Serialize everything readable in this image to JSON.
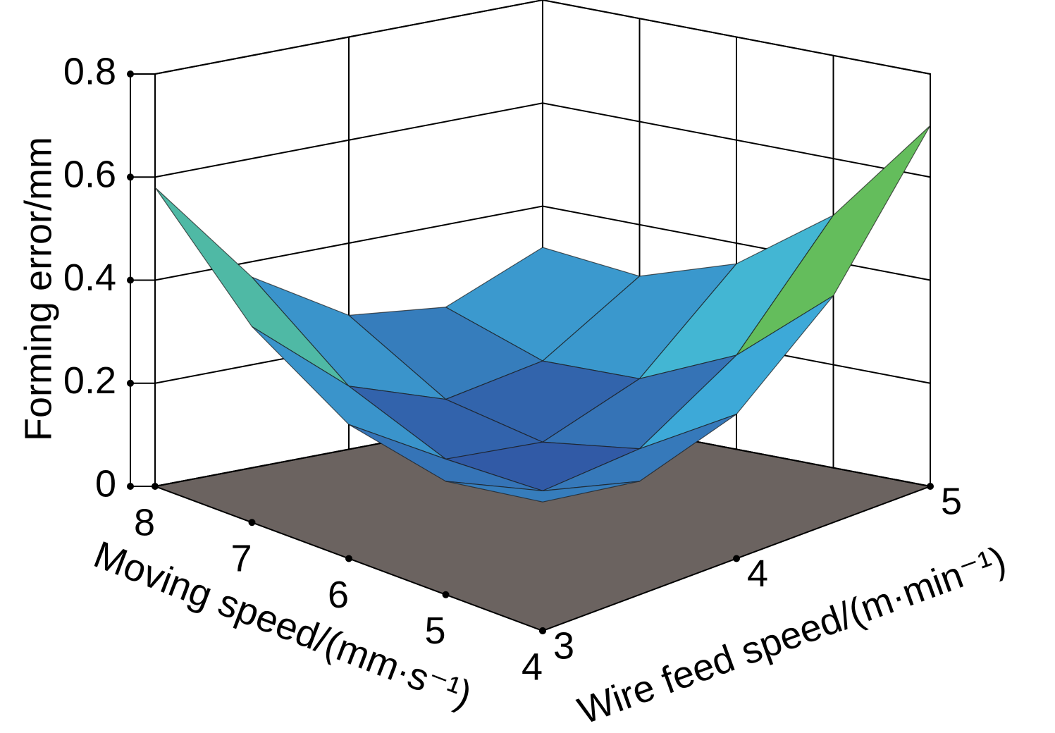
{
  "chart_data": {
    "type": "surface",
    "x_label": "Moving speed/(mm·s⁻¹)",
    "y_label": "Wire feed speed/(m·min⁻¹)",
    "z_label": "Forming error/mm",
    "x": [
      4,
      5,
      6,
      7,
      8
    ],
    "y": [
      3,
      3.5,
      4,
      4.5,
      5
    ],
    "z": [
      [
        0.25,
        0.22,
        0.28,
        0.44,
        0.7
      ],
      [
        0.22,
        0.14,
        0.16,
        0.28,
        0.49
      ],
      [
        0.26,
        0.14,
        0.12,
        0.19,
        0.36
      ],
      [
        0.38,
        0.22,
        0.15,
        0.18,
        0.3
      ],
      [
        0.58,
        0.37,
        0.26,
        0.24,
        0.32
      ]
    ],
    "xlim": [
      4,
      8
    ],
    "xticks": [
      4,
      5,
      6,
      7,
      8
    ],
    "ylim": [
      3,
      5
    ],
    "yticks": [
      3,
      4,
      5
    ],
    "zlim": [
      0,
      0.8
    ],
    "zticks": [
      0,
      0.2,
      0.4,
      0.6,
      0.8
    ],
    "grid": true,
    "floor_color": "#6b6360",
    "colormap": [
      "#2f4f9f",
      "#3fb5e0",
      "#6abf45",
      "#f2e640"
    ]
  }
}
